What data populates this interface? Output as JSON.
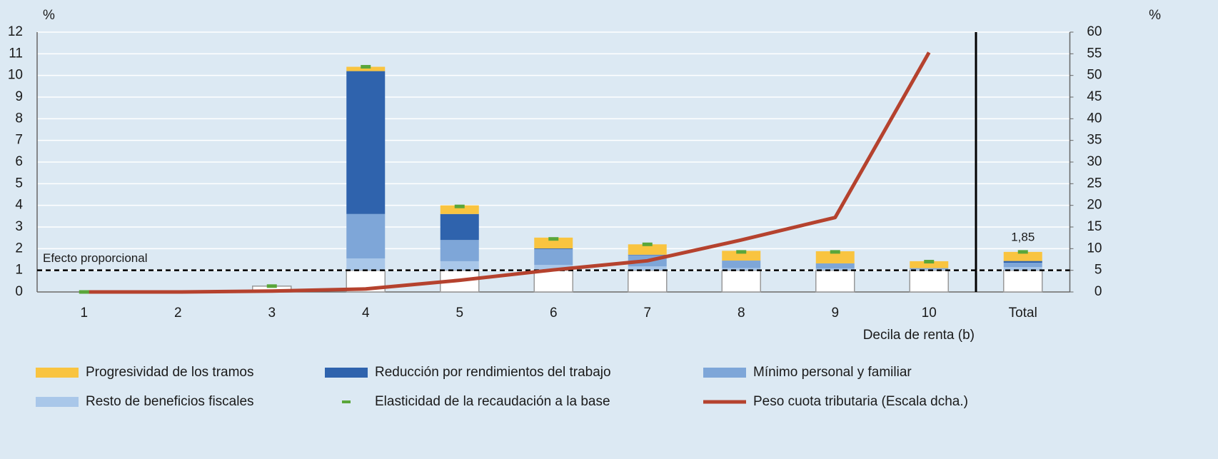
{
  "chart_data": {
    "type": "bar",
    "categories": [
      "1",
      "2",
      "3",
      "4",
      "5",
      "6",
      "7",
      "8",
      "9",
      "10",
      "Total"
    ],
    "x_label": "Decila de renta (b)",
    "y_unit": "%",
    "y2_unit": "%",
    "ylim": [
      0,
      12
    ],
    "yticks": [
      0,
      1,
      2,
      3,
      4,
      5,
      6,
      7,
      8,
      9,
      10,
      11,
      12
    ],
    "y2lim": [
      0,
      60
    ],
    "y2ticks": [
      0,
      5,
      10,
      15,
      20,
      25,
      30,
      35,
      40,
      45,
      50,
      55,
      60
    ],
    "grid": true,
    "reference_line": {
      "value": 1,
      "label": "Efecto proporcional"
    },
    "series": [
      {
        "name": "Progresividad de los tramos",
        "type": "bar",
        "color": "#f9c440",
        "values": [
          0,
          0,
          0,
          0.2,
          0.4,
          0.5,
          0.48,
          0.45,
          0.56,
          0.32,
          0.42
        ]
      },
      {
        "name": "Reducción por rendimientos del trabajo",
        "type": "bar",
        "color": "#2f63ad",
        "values": [
          0,
          0,
          0,
          6.6,
          1.2,
          0.03,
          0.02,
          0,
          0,
          0,
          0.08
        ]
      },
      {
        "name": "Mínimo personal y familiar",
        "type": "bar",
        "color": "#7ea6d8",
        "values": [
          0,
          0,
          0,
          2.05,
          0.98,
          0.73,
          0.52,
          0.35,
          0.24,
          0.05,
          0.2
        ]
      },
      {
        "name": "Resto de beneficios fiscales",
        "type": "bar",
        "color": "#a9c7e9",
        "values": [
          0,
          0,
          0,
          0.55,
          0.42,
          0.25,
          0.18,
          0.1,
          0.08,
          0.05,
          0.15
        ]
      },
      {
        "name": "Elasticidad de la recaudación a la base",
        "type": "marker",
        "color": "#5aa63a",
        "values": [
          0,
          null,
          0.27,
          10.4,
          3.95,
          2.45,
          2.2,
          1.85,
          1.85,
          1.4,
          1.85
        ],
        "value_labels": [
          null,
          null,
          null,
          null,
          null,
          null,
          null,
          null,
          null,
          null,
          "1,85"
        ]
      },
      {
        "name": "Peso cuota tributaria (Escala dcha.)",
        "type": "line",
        "axis": "y2",
        "color": "#b5422e",
        "values": [
          0,
          0,
          0.2,
          0.7,
          2.7,
          5.1,
          7.2,
          12,
          17.2,
          55.3,
          null
        ]
      },
      {
        "type": "bar",
        "color": "#ffffff",
        "values": [
          0,
          0,
          0.27,
          1,
          1,
          1,
          1,
          1,
          1,
          1,
          1
        ]
      }
    ]
  }
}
